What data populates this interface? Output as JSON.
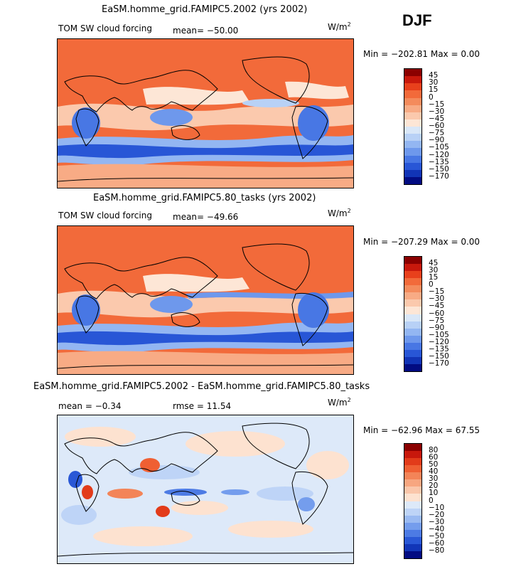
{
  "season": "DJF",
  "units_base": "W/m",
  "units_exp": "2",
  "panels": [
    {
      "title": "EaSM.homme_grid.FAMIPC5.2002 (yrs 2002)",
      "left_label": "TOM SW cloud forcing",
      "stat1": "mean= −50.00",
      "minmax": "Min = −202.81  Max =    0.00"
    },
    {
      "title": "EaSM.homme_grid.FAMIPC5.80_tasks (yrs 2002)",
      "left_label": "TOM SW cloud forcing",
      "stat1": "mean= −49.66",
      "minmax": "Min = −207.29  Max =    0.00"
    },
    {
      "title": "EaSM.homme_grid.FAMIPC5.2002 - EaSM.homme_grid.FAMIPC5.80_tasks",
      "left_label": "mean =  −0.34",
      "stat1": "rmse =  11.54",
      "minmax": "Min = −62.96  Max =  67.55"
    }
  ],
  "colorbar_field": {
    "labels": [
      "45",
      "30",
      "15",
      "0",
      "−15",
      "−30",
      "−45",
      "−60",
      "−75",
      "−90",
      "−105",
      "−120",
      "−135",
      "−150",
      "−170"
    ],
    "colors": [
      "#8b0000",
      "#c8180c",
      "#e8401c",
      "#f26a3a",
      "#f48b5c",
      "#f8ab85",
      "#fbc9ad",
      "#fde6d6",
      "#d9e7f8",
      "#b8d1f6",
      "#93b6f2",
      "#6e98ec",
      "#4877e4",
      "#2856d6",
      "#1134b6",
      "#020c82"
    ]
  },
  "colorbar_diff": {
    "labels": [
      "80",
      "60",
      "50",
      "40",
      "30",
      "20",
      "10",
      "0",
      "−10",
      "−20",
      "−30",
      "−40",
      "−50",
      "−60",
      "−80"
    ],
    "colors": [
      "#8b0000",
      "#c8180c",
      "#e23b1a",
      "#ef5f33",
      "#f38458",
      "#f7a680",
      "#fac6aa",
      "#fde2d0",
      "#dde9f9",
      "#bed4f7",
      "#9abaf2",
      "#749ded",
      "#4d7be4",
      "#2a58d6",
      "#1236b8",
      "#020c82"
    ]
  },
  "chart_data": [
    {
      "type": "heatmap",
      "title": "EaSM.homme_grid.FAMIPC5.2002 (yrs 2002)",
      "variable": "TOM SW cloud forcing",
      "units": "W/m^2",
      "mean": -50.0,
      "min": -202.81,
      "max": 0.0,
      "contour_levels": [
        45,
        30,
        15,
        0,
        -15,
        -30,
        -45,
        -60,
        -75,
        -90,
        -105,
        -120,
        -135,
        -150,
        -170
      ]
    },
    {
      "type": "heatmap",
      "title": "EaSM.homme_grid.FAMIPC5.80_tasks (yrs 2002)",
      "variable": "TOM SW cloud forcing",
      "units": "W/m^2",
      "mean": -49.66,
      "min": -207.29,
      "max": 0.0,
      "contour_levels": [
        45,
        30,
        15,
        0,
        -15,
        -30,
        -45,
        -60,
        -75,
        -90,
        -105,
        -120,
        -135,
        -150,
        -170
      ]
    },
    {
      "type": "heatmap",
      "title": "EaSM.homme_grid.FAMIPC5.2002 - EaSM.homme_grid.FAMIPC5.80_tasks",
      "units": "W/m^2",
      "mean": -0.34,
      "rmse": 11.54,
      "min": -62.96,
      "max": 67.55,
      "contour_levels": [
        80,
        60,
        50,
        40,
        30,
        20,
        10,
        0,
        -10,
        -20,
        -30,
        -40,
        -50,
        -60,
        -80
      ]
    }
  ]
}
